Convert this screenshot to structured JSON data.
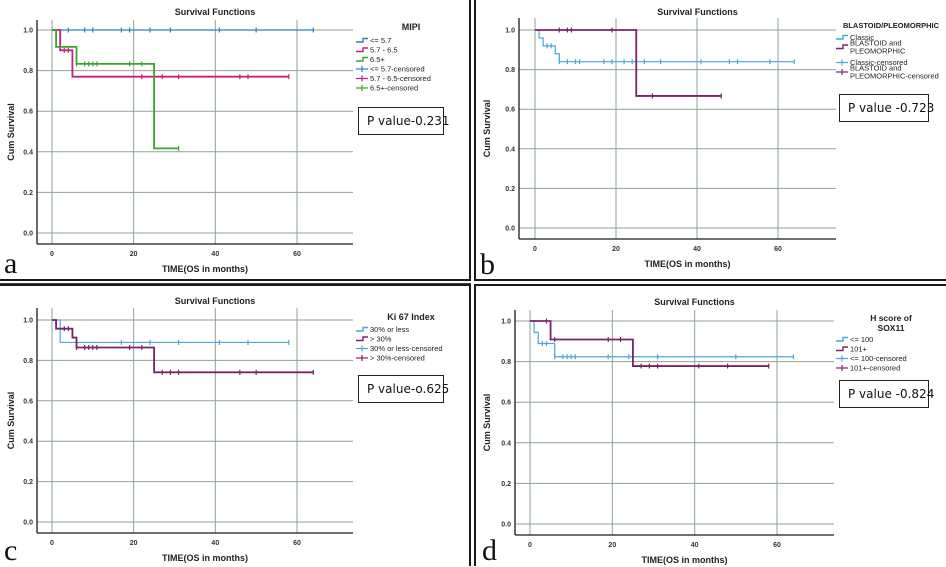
{
  "colors": {
    "blue": "#2f7fc8",
    "lightblue": "#4aa6dc",
    "purple": "#7a2368",
    "magenta": "#c2217f",
    "green": "#3aa52a",
    "darkgreen": "#2a8a1f",
    "grid": "#8fa39a",
    "axis": "#1a1a1a"
  },
  "chart_data": [
    {
      "panel": "a",
      "type": "line",
      "step": true,
      "title": "Survival Functions",
      "xlabel": "TIME(OS in months)",
      "ylabel": "Cum Survival",
      "xticks": [
        0,
        20,
        40,
        60
      ],
      "yticks": [
        "0.0",
        "0.2",
        "0.4",
        "0.6",
        "0.8",
        "1.0"
      ],
      "xlim": [
        -3,
        73
      ],
      "ylim": [
        -0.03,
        1.05
      ],
      "grid": true,
      "legend": {
        "title": "MIPI",
        "placement": "right",
        "entries": [
          "<= 5.7",
          "5.7 - 6.5",
          "6.5+",
          "<= 5.7-censored",
          "5.7 - 6.5-censored",
          "6.5+-censored"
        ]
      },
      "annotation": "P value-0.231",
      "series": [
        {
          "name": "<= 5.7",
          "color": "blue",
          "steps": [
            [
              0,
              1.0
            ],
            [
              64,
              1.0
            ]
          ],
          "censored": [
            [
              4,
              1.0
            ],
            [
              8,
              1.0
            ],
            [
              10,
              1.0
            ],
            [
              17,
              1.0
            ],
            [
              19,
              1.0
            ],
            [
              24,
              1.0
            ],
            [
              29,
              1.0
            ],
            [
              41,
              1.0
            ],
            [
              50,
              1.0
            ],
            [
              64,
              1.0
            ]
          ]
        },
        {
          "name": "5.7 - 6.5",
          "color": "magenta",
          "steps": [
            [
              0,
              1.0
            ],
            [
              2,
              0.9
            ],
            [
              5,
              0.77
            ],
            [
              58,
              0.77
            ]
          ],
          "censored": [
            [
              3,
              0.9
            ],
            [
              4,
              0.9
            ],
            [
              22,
              0.77
            ],
            [
              27,
              0.77
            ],
            [
              31,
              0.77
            ],
            [
              46,
              0.77
            ],
            [
              48,
              0.77
            ],
            [
              58,
              0.77
            ]
          ]
        },
        {
          "name": "6.5+",
          "color": "green",
          "steps": [
            [
              0,
              1.0
            ],
            [
              1,
              0.917
            ],
            [
              6,
              0.833
            ],
            [
              25,
              0.417
            ],
            [
              31,
              0.417
            ]
          ],
          "censored": [
            [
              6,
              0.833
            ],
            [
              8,
              0.833
            ],
            [
              9,
              0.833
            ],
            [
              10,
              0.833
            ],
            [
              11,
              0.833
            ],
            [
              19,
              0.833
            ],
            [
              22,
              0.833
            ],
            [
              31,
              0.417
            ]
          ]
        }
      ]
    },
    {
      "panel": "b",
      "type": "line",
      "step": true,
      "title": "Survival Functions",
      "xlabel": "TIME(OS in months)",
      "ylabel": "Cum Survival",
      "xticks": [
        0,
        20,
        40,
        60
      ],
      "yticks": [
        "0.0",
        "0.2",
        "0.4",
        "0.6",
        "0.8",
        "1.0"
      ],
      "xlim": [
        -4,
        74
      ],
      "ylim": [
        -0.06,
        1.05
      ],
      "grid": true,
      "legend": {
        "title": "BLASTOID/PLEOMORPHIC",
        "placement": "right",
        "entries": [
          "Classic",
          "BLASTOID and PLEOMORPHIC",
          "Classic-censored",
          "BLASTOID and PLEOMORPHIC-censored"
        ]
      },
      "annotation": "P value -0.723",
      "series": [
        {
          "name": "Classic",
          "color": "lightblue",
          "steps": [
            [
              0,
              1.0
            ],
            [
              1,
              0.96
            ],
            [
              2,
              0.92
            ],
            [
              5,
              0.88
            ],
            [
              6,
              0.84
            ],
            [
              64,
              0.84
            ]
          ],
          "censored": [
            [
              3,
              0.92
            ],
            [
              4,
              0.92
            ],
            [
              6,
              0.84
            ],
            [
              8,
              0.84
            ],
            [
              10,
              0.84
            ],
            [
              11,
              0.84
            ],
            [
              17,
              0.84
            ],
            [
              19,
              0.84
            ],
            [
              22,
              0.84
            ],
            [
              24,
              0.84
            ],
            [
              27,
              0.84
            ],
            [
              31,
              0.84
            ],
            [
              41,
              0.84
            ],
            [
              48,
              0.84
            ],
            [
              50,
              0.84
            ],
            [
              58,
              0.84
            ],
            [
              64,
              0.84
            ]
          ]
        },
        {
          "name": "BLASTOID and PLEOMORPHIC",
          "color": "purple",
          "steps": [
            [
              0,
              1.0
            ],
            [
              25,
              0.667
            ],
            [
              46,
              0.667
            ]
          ],
          "censored": [
            [
              6,
              1.0
            ],
            [
              8,
              1.0
            ],
            [
              9,
              1.0
            ],
            [
              19,
              1.0
            ],
            [
              29,
              0.667
            ],
            [
              46,
              0.667
            ]
          ]
        }
      ]
    },
    {
      "panel": "c",
      "type": "line",
      "step": true,
      "title": "Survival Functions",
      "xlabel": "TIME(OS in months)",
      "ylabel": "Cum Survival",
      "xticks": [
        0,
        20,
        40,
        60
      ],
      "yticks": [
        "0.0",
        "0.2",
        "0.4",
        "0.6",
        "0.8",
        "1.0"
      ],
      "xlim": [
        -3,
        73
      ],
      "ylim": [
        -0.06,
        1.05
      ],
      "grid": true,
      "legend": {
        "title": "Ki 67 Index",
        "placement": "right",
        "entries": [
          "30% or less",
          "> 30%",
          "30% or less-censored",
          "> 30%-censored"
        ]
      },
      "annotation": "P value-o.625",
      "series": [
        {
          "name": "30% or less",
          "color": "lightblue",
          "steps": [
            [
              0,
              1.0
            ],
            [
              2,
              0.889
            ],
            [
              58,
              0.889
            ]
          ],
          "censored": [
            [
              17,
              0.889
            ],
            [
              24,
              0.889
            ],
            [
              31,
              0.889
            ],
            [
              41,
              0.889
            ],
            [
              48,
              0.889
            ],
            [
              58,
              0.889
            ]
          ]
        },
        {
          "name": "> 30%",
          "color": "purple",
          "steps": [
            [
              0,
              1.0
            ],
            [
              1,
              0.957
            ],
            [
              5,
              0.913
            ],
            [
              6,
              0.864
            ],
            [
              25,
              0.741
            ],
            [
              64,
              0.741
            ]
          ],
          "censored": [
            [
              3,
              0.957
            ],
            [
              4,
              0.957
            ],
            [
              6,
              0.864
            ],
            [
              8,
              0.864
            ],
            [
              9,
              0.864
            ],
            [
              10,
              0.864
            ],
            [
              11,
              0.864
            ],
            [
              19,
              0.864
            ],
            [
              22,
              0.864
            ],
            [
              27,
              0.741
            ],
            [
              29,
              0.741
            ],
            [
              31,
              0.741
            ],
            [
              46,
              0.741
            ],
            [
              50,
              0.741
            ],
            [
              64,
              0.741
            ]
          ]
        }
      ]
    },
    {
      "panel": "d",
      "type": "line",
      "step": true,
      "title": "Survival Functions",
      "xlabel": "TIME(OS in months)",
      "ylabel": "Cum Survival",
      "xticks": [
        0,
        20,
        40,
        60
      ],
      "yticks": [
        "0.0",
        "0.2",
        "0.4",
        "0.6",
        "0.8",
        "1.0"
      ],
      "xlim": [
        -4,
        74
      ],
      "ylim": [
        -0.06,
        1.05
      ],
      "grid": true,
      "legend": {
        "title": "H score of SOX11",
        "placement": "right",
        "entries": [
          "<= 100",
          "101+",
          "<= 100-censored",
          "101+-censored"
        ]
      },
      "annotation": "P value -0.824",
      "series": [
        {
          "name": "<= 100",
          "color": "lightblue",
          "steps": [
            [
              0,
              1.0
            ],
            [
              1,
              0.944
            ],
            [
              2,
              0.889
            ],
            [
              6,
              0.824
            ],
            [
              64,
              0.824
            ]
          ],
          "censored": [
            [
              3,
              0.889
            ],
            [
              4,
              0.889
            ],
            [
              6,
              0.824
            ],
            [
              8,
              0.824
            ],
            [
              9,
              0.824
            ],
            [
              10,
              0.824
            ],
            [
              11,
              0.824
            ],
            [
              19,
              0.824
            ],
            [
              24,
              0.824
            ],
            [
              31,
              0.824
            ],
            [
              50,
              0.824
            ],
            [
              64,
              0.824
            ]
          ]
        },
        {
          "name": "101+",
          "color": "purple",
          "steps": [
            [
              0,
              1.0
            ],
            [
              5,
              0.909
            ],
            [
              25,
              0.778
            ],
            [
              58,
              0.778
            ]
          ],
          "censored": [
            [
              4,
              1.0
            ],
            [
              6,
              0.909
            ],
            [
              19,
              0.909
            ],
            [
              22,
              0.909
            ],
            [
              27,
              0.778
            ],
            [
              29,
              0.778
            ],
            [
              31,
              0.778
            ],
            [
              41,
              0.778
            ],
            [
              48,
              0.778
            ],
            [
              58,
              0.778
            ]
          ]
        }
      ]
    }
  ],
  "panels": [
    {
      "letter": "a"
    },
    {
      "letter": "b"
    },
    {
      "letter": "c"
    },
    {
      "letter": "d"
    }
  ]
}
